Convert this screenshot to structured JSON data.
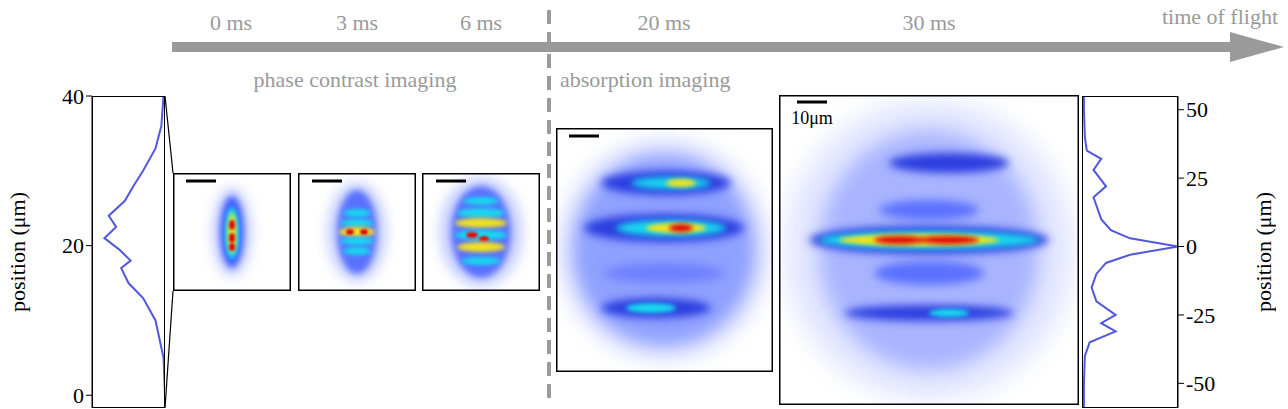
{
  "timeline": {
    "title": "time of flight",
    "times": [
      "0 ms",
      "3 ms",
      "6 ms",
      "20 ms",
      "30 ms"
    ],
    "methods": [
      "phase contrast imaging",
      "absorption imaging"
    ]
  },
  "scale_label": "10μm",
  "chart_data": [
    {
      "type": "line",
      "ylabel": "position (μm)",
      "y": [
        -1.7,
        0,
        5,
        10,
        13,
        15,
        17,
        18,
        19.5,
        21,
        22.5,
        24,
        26,
        28,
        30,
        33,
        36,
        40
      ],
      "x": [
        0,
        0,
        0.02,
        0.13,
        0.3,
        0.5,
        0.6,
        0.47,
        0.63,
        0.83,
        0.67,
        0.77,
        0.55,
        0.43,
        0.3,
        0.13,
        0.05,
        0.02
      ],
      "xlim": [
        1,
        0
      ],
      "ylim": [
        -1.7,
        40
      ],
      "yticks": [
        0,
        20,
        40
      ],
      "tick_labels": "y",
      "color": "#5058e0"
    },
    {
      "type": "line",
      "ylabel": "position (μm)",
      "y": [
        55,
        50,
        40,
        35,
        32,
        28,
        22,
        18,
        15,
        10,
        6,
        3,
        0,
        -3,
        -6,
        -10,
        -15,
        -20,
        -25,
        -28,
        -31,
        -35,
        -40,
        -50,
        -59
      ],
      "x": [
        0.02,
        0.02,
        0.03,
        0.05,
        0.2,
        0.12,
        0.25,
        0.12,
        0.15,
        0.2,
        0.3,
        0.5,
        1,
        0.5,
        0.25,
        0.15,
        0.1,
        0.15,
        0.35,
        0.2,
        0.35,
        0.08,
        0.03,
        0.02,
        0.02
      ],
      "xlim": [
        0,
        1
      ],
      "ylim": [
        -59,
        55
      ],
      "yticks": [
        -50,
        -25,
        0,
        25,
        50
      ],
      "tick_labels": "y",
      "color": "#5058e0"
    }
  ]
}
